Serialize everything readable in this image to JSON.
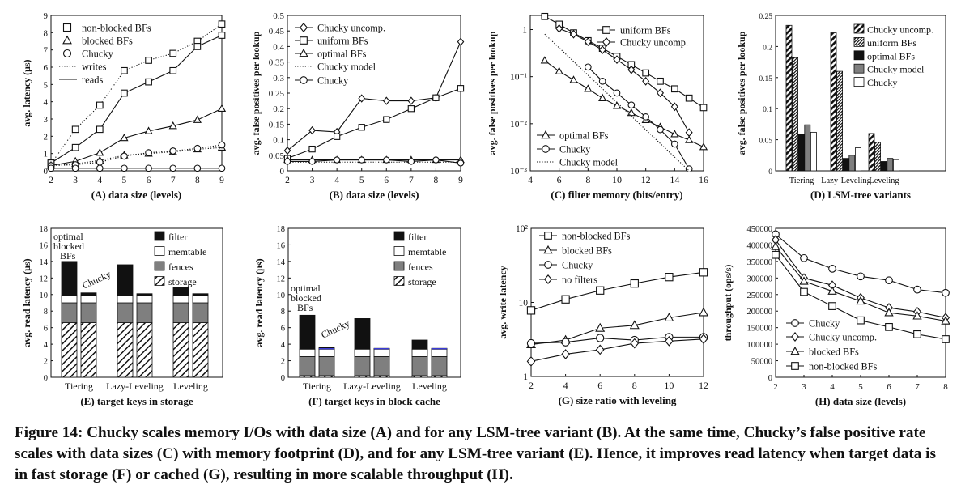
{
  "caption": "Figure 14: Chucky scales memory I/Os with data size (A) and for any LSM-tree variant (B). At the same time, Chucky’s false positive rate scales with data sizes (C) with memory footprint (D), and for any LSM-tree variant (E). Hence, it improves read latency when target data is in fast storage (F) or cached (G), resulting in more scalable throughput (H).",
  "colors": {
    "ink": "#111111",
    "gray": "#7f7f7f",
    "white": "#ffffff",
    "blue": "#3b3bd6"
  },
  "chart_data": [
    {
      "id": "A",
      "type": "line",
      "xlabel": "(A) data size (levels)",
      "ylabel": "avg. latency (μs)",
      "xlim": [
        2,
        9
      ],
      "ylim": [
        0,
        9
      ],
      "xticks": [
        2,
        3,
        4,
        5,
        6,
        7,
        8,
        9
      ],
      "yticks": [
        0,
        1,
        2,
        3,
        4,
        5,
        6,
        7,
        8,
        9
      ],
      "legend": "top-left",
      "legend_entries": [
        "non-blocked BFs",
        "blocked BFs",
        "Chucky",
        "writes",
        "reads"
      ],
      "series": [
        {
          "name": "non-blocked BFs",
          "line": "dotted",
          "marker": "square",
          "x": [
            2,
            3,
            4,
            5,
            6,
            7,
            8,
            9
          ],
          "y": [
            0.4,
            2.4,
            3.8,
            5.8,
            6.4,
            6.8,
            7.5,
            8.5
          ]
        },
        {
          "name": "non-blocked BFs",
          "line": "solid",
          "marker": "square",
          "x": [
            2,
            3,
            4,
            5,
            6,
            7,
            8,
            9
          ],
          "y": [
            0.45,
            1.35,
            2.4,
            4.5,
            5.15,
            5.8,
            7.2,
            7.85
          ]
        },
        {
          "name": "blocked BFs",
          "line": "dotted",
          "marker": "triangle",
          "x": [
            2,
            3,
            4,
            5,
            6,
            7,
            8,
            9
          ],
          "y": [
            0.3,
            0.4,
            0.6,
            0.9,
            1.0,
            1.1,
            1.25,
            1.35
          ]
        },
        {
          "name": "blocked BFs",
          "line": "solid",
          "marker": "triangle",
          "x": [
            2,
            3,
            4,
            5,
            6,
            7,
            8,
            9
          ],
          "y": [
            0.3,
            0.55,
            1.05,
            1.9,
            2.3,
            2.6,
            2.95,
            3.6
          ]
        },
        {
          "name": "Chucky",
          "line": "dotted",
          "marker": "circle",
          "x": [
            2,
            3,
            4,
            5,
            6,
            7,
            8,
            9
          ],
          "y": [
            0.3,
            0.35,
            0.5,
            0.85,
            1.05,
            1.15,
            1.3,
            1.5
          ]
        },
        {
          "name": "Chucky",
          "line": "solid",
          "marker": "circle",
          "x": [
            2,
            3,
            4,
            5,
            6,
            7,
            8,
            9
          ],
          "y": [
            0.15,
            0.15,
            0.15,
            0.15,
            0.15,
            0.15,
            0.15,
            0.15
          ]
        }
      ]
    },
    {
      "id": "B",
      "type": "line",
      "xlabel": "(B) data size (levels)",
      "ylabel": "avg. false positives per lookup",
      "xlim": [
        2,
        9
      ],
      "ylim": [
        0,
        0.5
      ],
      "xticks": [
        2,
        3,
        4,
        5,
        6,
        7,
        8,
        9
      ],
      "yticks": [
        0,
        0.05,
        0.1,
        0.15,
        0.2,
        0.25,
        0.3,
        0.35,
        0.4,
        0.45,
        0.5
      ],
      "legend": "top-left",
      "legend_entries": [
        "Chucky uncomp.",
        "uniform BFs",
        "optimal BFs",
        "Chucky model",
        "Chucky"
      ],
      "series": [
        {
          "name": "Chucky uncomp.",
          "line": "solid",
          "marker": "diamond",
          "x": [
            2,
            3,
            4,
            5,
            6,
            7,
            8,
            9
          ],
          "y": [
            0.065,
            0.13,
            0.125,
            0.233,
            0.225,
            0.225,
            0.235,
            0.415
          ]
        },
        {
          "name": "uniform BFs",
          "line": "solid",
          "marker": "square",
          "x": [
            2,
            3,
            4,
            5,
            6,
            7,
            8,
            9
          ],
          "y": [
            0.04,
            0.07,
            0.11,
            0.14,
            0.165,
            0.2,
            0.235,
            0.265
          ]
        },
        {
          "name": "optimal BFs",
          "line": "solid",
          "marker": "triangle",
          "x": [
            2,
            3,
            4,
            5,
            6,
            7,
            8,
            9
          ],
          "y": [
            0.035,
            0.035,
            0.035,
            0.035,
            0.035,
            0.035,
            0.035,
            0.035
          ]
        },
        {
          "name": "Chucky model",
          "line": "dotted",
          "marker": "none",
          "x": [
            2,
            3,
            4,
            5,
            6,
            7,
            8,
            9
          ],
          "y": [
            0.028,
            0.028,
            0.028,
            0.028,
            0.028,
            0.028,
            0.028,
            0.028
          ]
        },
        {
          "name": "Chucky",
          "line": "solid",
          "marker": "circle",
          "x": [
            2,
            3,
            4,
            5,
            6,
            7,
            8,
            9
          ],
          "y": [
            0.03,
            0.03,
            0.035,
            0.035,
            0.035,
            0.03,
            0.035,
            0.025
          ]
        }
      ]
    },
    {
      "id": "C",
      "type": "line",
      "xlabel": "(C) filter memory (bits/entry)",
      "ylabel": "avg. false positives per lookup",
      "xlim": [
        4,
        16
      ],
      "yscale": "log",
      "ylim": [
        0.001,
        2
      ],
      "xticks": [
        4,
        6,
        8,
        10,
        12,
        14,
        16
      ],
      "yticks": [
        0.001,
        0.01,
        0.1,
        1
      ],
      "ytick_labels": [
        "10⁻³",
        "10⁻²",
        "10⁻¹",
        "1"
      ],
      "legend": "upper-right and lower-left",
      "legend_entries": [
        "uniform BFs",
        "Chucky uncomp.",
        "optimal BFs",
        "Chucky",
        "Chucky model"
      ],
      "series": [
        {
          "name": "uniform BFs",
          "line": "solid",
          "marker": "square",
          "x": [
            5,
            6,
            7,
            8,
            9,
            10,
            11,
            12,
            13,
            14,
            15,
            16
          ],
          "y": [
            1.9,
            1.3,
            0.85,
            0.58,
            0.4,
            0.27,
            0.18,
            0.12,
            0.08,
            0.055,
            0.035,
            0.022
          ]
        },
        {
          "name": "Chucky uncomp.",
          "line": "solid",
          "marker": "diamond",
          "x": [
            6,
            7,
            8,
            9,
            10,
            11,
            12,
            13,
            14,
            15
          ],
          "y": [
            1.05,
            0.8,
            0.55,
            0.37,
            0.23,
            0.14,
            0.08,
            0.045,
            0.023,
            0.0065
          ]
        },
        {
          "name": "optimal BFs",
          "line": "solid",
          "marker": "triangle",
          "x": [
            5,
            6,
            7,
            8,
            9,
            10,
            11,
            12,
            13,
            14,
            15,
            16
          ],
          "y": [
            0.22,
            0.13,
            0.085,
            0.055,
            0.035,
            0.024,
            0.017,
            0.012,
            0.0085,
            0.006,
            0.0045,
            0.0032
          ]
        },
        {
          "name": "Chucky",
          "line": "solid",
          "marker": "circle",
          "x": [
            8,
            9,
            10,
            11,
            12,
            13,
            14,
            15
          ],
          "y": [
            0.16,
            0.08,
            0.045,
            0.025,
            0.014,
            0.0075,
            0.0037,
            0.0011
          ]
        },
        {
          "name": "Chucky model",
          "line": "dotted",
          "marker": "none",
          "x": [
            5,
            15
          ],
          "y": [
            0.8,
            0.001
          ]
        }
      ]
    },
    {
      "id": "D",
      "type": "bar",
      "xlabel": "(D) LSM-tree variants",
      "ylabel": "avg. false positives per lookup",
      "ylim": [
        0,
        0.25
      ],
      "yticks": [
        0,
        0.05,
        0.1,
        0.15,
        0.2,
        0.25
      ],
      "categories": [
        "Tiering",
        "Lazy-Leveling",
        "Leveling"
      ],
      "legend": "top-right",
      "series": [
        {
          "name": "Chucky uncomp.",
          "fill": "diag-wide",
          "values": [
            0.234,
            0.222,
            0.06
          ]
        },
        {
          "name": "uniform BFs",
          "fill": "diag-dense",
          "values": [
            0.182,
            0.16,
            0.046
          ]
        },
        {
          "name": "optimal BFs",
          "fill": "black",
          "values": [
            0.059,
            0.02,
            0.015
          ]
        },
        {
          "name": "Chucky model",
          "fill": "gray",
          "values": [
            0.074,
            0.025,
            0.02
          ]
        },
        {
          "name": "Chucky",
          "fill": "white",
          "values": [
            0.062,
            0.037,
            0.018
          ]
        }
      ]
    },
    {
      "id": "E",
      "type": "bar",
      "stacked": true,
      "xlabel": "(E) target keys in storage",
      "ylabel": "avg. read latency (μs)",
      "ylim": [
        0,
        18
      ],
      "yticks": [
        0,
        2,
        4,
        6,
        8,
        10,
        12,
        14,
        16,
        18
      ],
      "categories": [
        "Tiering",
        "Lazy-Leveling",
        "Leveling"
      ],
      "annotations": [
        "optimal",
        "blocked",
        "BFs",
        "Chucky"
      ],
      "legend": "top-right",
      "legend_entries": [
        "filter",
        "memtable",
        "fences",
        "storage"
      ],
      "bars": [
        {
          "category": "Tiering",
          "variant": "optimal blocked BFs",
          "storage": 6.6,
          "fences": 2.4,
          "memtable": 0.9,
          "filter": 4.1
        },
        {
          "category": "Tiering",
          "variant": "Chucky",
          "storage": 6.6,
          "fences": 2.4,
          "memtable": 0.9,
          "filter": 0.3
        },
        {
          "category": "Lazy-Leveling",
          "variant": "optimal blocked BFs",
          "storage": 6.6,
          "fences": 2.4,
          "memtable": 0.9,
          "filter": 3.7
        },
        {
          "category": "Lazy-Leveling",
          "variant": "Chucky",
          "storage": 6.6,
          "fences": 2.4,
          "memtable": 0.9,
          "filter": 0.2
        },
        {
          "category": "Leveling",
          "variant": "optimal blocked BFs",
          "storage": 6.6,
          "fences": 2.4,
          "memtable": 0.9,
          "filter": 1.0
        },
        {
          "category": "Leveling",
          "variant": "Chucky",
          "storage": 6.6,
          "fences": 2.4,
          "memtable": 0.9,
          "filter": 0.2
        }
      ]
    },
    {
      "id": "F",
      "type": "bar",
      "stacked": true,
      "xlabel": "(F) target keys in block cache",
      "ylabel": "avg. read latency (μs)",
      "ylim": [
        0,
        18
      ],
      "yticks": [
        0,
        2,
        4,
        6,
        8,
        10,
        12,
        14,
        16,
        18
      ],
      "categories": [
        "Tiering",
        "Lazy-Leveling",
        "Leveling"
      ],
      "annotations": [
        "optimal",
        "blocked",
        "BFs",
        "Chucky"
      ],
      "legend": "top-right",
      "legend_entries": [
        "filter",
        "memtable",
        "fences",
        "storage"
      ],
      "bars": [
        {
          "category": "Tiering",
          "variant": "optimal blocked BFs",
          "storage": 0.2,
          "fences": 2.3,
          "memtable": 0.9,
          "filter": 4.1
        },
        {
          "category": "Tiering",
          "variant": "Chucky",
          "storage": 0.2,
          "fences": 2.3,
          "memtable": 0.9,
          "filter": 0.2
        },
        {
          "category": "Lazy-Leveling",
          "variant": "optimal blocked BFs",
          "storage": 0.2,
          "fences": 2.3,
          "memtable": 0.9,
          "filter": 3.7
        },
        {
          "category": "Lazy-Leveling",
          "variant": "Chucky",
          "storage": 0.2,
          "fences": 2.3,
          "memtable": 0.9,
          "filter": 0.1
        },
        {
          "category": "Leveling",
          "variant": "optimal blocked BFs",
          "storage": 0.2,
          "fences": 2.3,
          "memtable": 0.9,
          "filter": 1.1
        },
        {
          "category": "Leveling",
          "variant": "Chucky",
          "storage": 0.2,
          "fences": 2.3,
          "memtable": 0.9,
          "filter": 0.1
        }
      ]
    },
    {
      "id": "G",
      "type": "line",
      "xlabel": "(G) size ratio with leveling",
      "ylabel": "avg. write latency",
      "xlim": [
        2,
        12
      ],
      "yscale": "log",
      "ylim": [
        1,
        100
      ],
      "xticks": [
        2,
        4,
        6,
        8,
        10,
        12
      ],
      "yticks": [
        1,
        10,
        100
      ],
      "ytick_labels": [
        "1",
        "10",
        "10²"
      ],
      "legend": "top-left",
      "legend_entries": [
        "non-blocked BFs",
        "blocked BFs",
        "Chucky",
        "no filters"
      ],
      "series": [
        {
          "name": "non-blocked BFs",
          "line": "solid",
          "marker": "square",
          "x": [
            2,
            4,
            6,
            8,
            10,
            12
          ],
          "y": [
            7.8,
            11,
            14.5,
            18,
            22,
            25.5
          ]
        },
        {
          "name": "blocked BFs",
          "line": "solid",
          "marker": "triangle",
          "x": [
            2,
            4,
            6,
            8,
            10,
            12
          ],
          "y": [
            2.7,
            3.1,
            4.5,
            4.9,
            6.2,
            7.3
          ]
        },
        {
          "name": "Chucky",
          "line": "solid",
          "marker": "circle",
          "x": [
            2,
            4,
            6,
            8,
            10,
            12
          ],
          "y": [
            2.8,
            2.9,
            3.3,
            3.1,
            3.4,
            3.4
          ]
        },
        {
          "name": "no filters",
          "line": "solid",
          "marker": "diamond",
          "x": [
            2,
            4,
            6,
            8,
            10,
            12
          ],
          "y": [
            1.6,
            2.0,
            2.3,
            2.8,
            3.0,
            3.2
          ]
        }
      ]
    },
    {
      "id": "H",
      "type": "line",
      "xlabel": "(H) data size (levels)",
      "ylabel": "throughput (ops/s)",
      "xlim": [
        2,
        8
      ],
      "ylim": [
        0,
        450000
      ],
      "xticks": [
        2,
        3,
        4,
        5,
        6,
        7,
        8
      ],
      "yticks": [
        0,
        50000,
        100000,
        150000,
        200000,
        250000,
        300000,
        350000,
        400000,
        450000
      ],
      "legend": "bottom-left",
      "legend_entries": [
        "Chucky",
        "Chucky uncomp.",
        "blocked BFs",
        "non-blocked BFs"
      ],
      "series": [
        {
          "name": "Chucky",
          "line": "solid",
          "marker": "circle",
          "x": [
            2,
            3,
            4,
            5,
            6,
            7,
            8
          ],
          "y": [
            432000,
            360000,
            328000,
            305000,
            293000,
            265000,
            255000
          ]
        },
        {
          "name": "Chucky uncomp.",
          "line": "solid",
          "marker": "diamond",
          "x": [
            2,
            3,
            4,
            5,
            6,
            7,
            8
          ],
          "y": [
            415000,
            300000,
            278000,
            240000,
            210000,
            198000,
            180000
          ]
        },
        {
          "name": "blocked BFs",
          "line": "solid",
          "marker": "triangle",
          "x": [
            2,
            3,
            4,
            5,
            6,
            7,
            8
          ],
          "y": [
            395000,
            290000,
            260000,
            230000,
            195000,
            185000,
            170000
          ]
        },
        {
          "name": "non-blocked BFs",
          "line": "solid",
          "marker": "square",
          "x": [
            2,
            3,
            4,
            5,
            6,
            7,
            8
          ],
          "y": [
            370000,
            258000,
            215000,
            172000,
            152000,
            130000,
            115000
          ]
        }
      ]
    }
  ]
}
